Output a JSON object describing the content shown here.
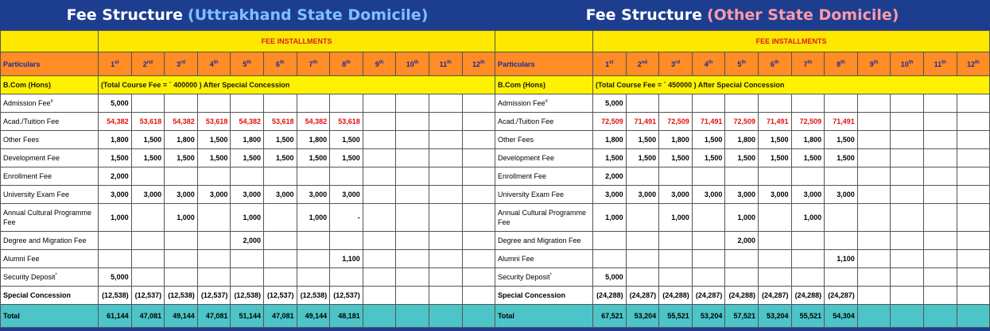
{
  "left": {
    "title": "Fee Structure",
    "title_highlight": "(Uttrakhand State Domicile)",
    "highlight_color": "#7fc0ff",
    "installments_label": "FEE INSTALLMENTS",
    "particulars_label": "Particulars",
    "installments": [
      {
        "n": "1",
        "s": "st"
      },
      {
        "n": "2",
        "s": "nd"
      },
      {
        "n": "3",
        "s": "rd"
      },
      {
        "n": "4",
        "s": "th"
      },
      {
        "n": "5",
        "s": "th"
      },
      {
        "n": "6",
        "s": "th"
      },
      {
        "n": "7",
        "s": "th"
      },
      {
        "n": "8",
        "s": "th"
      },
      {
        "n": "9",
        "s": "th"
      },
      {
        "n": "10",
        "s": "th"
      },
      {
        "n": "11",
        "s": "th"
      },
      {
        "n": "12",
        "s": "th"
      }
    ],
    "course": "B.Com (Hons)",
    "course_note": "(Total Course Fee = `      400000  ) After Special Concession",
    "rows": [
      {
        "label": "Admission Fee",
        "mark": "#",
        "values": [
          "5,000",
          "",
          "",
          "",
          "",
          "",
          "",
          "",
          "",
          "",
          "",
          ""
        ]
      },
      {
        "label": "Acad./Tuition  Fee",
        "mark": "",
        "red": true,
        "values": [
          "54,382",
          "53,618",
          "54,382",
          "53,618",
          "54,382",
          "53,618",
          "54,382",
          "53,618",
          "",
          "",
          "",
          ""
        ]
      },
      {
        "label": "Other Fees",
        "mark": "",
        "values": [
          "1,800",
          "1,500",
          "1,800",
          "1,500",
          "1,800",
          "1,500",
          "1,800",
          "1,500",
          "",
          "",
          "",
          ""
        ]
      },
      {
        "label": "Development Fee",
        "mark": "",
        "values": [
          "1,500",
          "1,500",
          "1,500",
          "1,500",
          "1,500",
          "1,500",
          "1,500",
          "1,500",
          "",
          "",
          "",
          ""
        ]
      },
      {
        "label": "Enrollment Fee",
        "mark": "",
        "values": [
          "2,000",
          "",
          "",
          "",
          "",
          "",
          "",
          "",
          "",
          "",
          "",
          ""
        ]
      },
      {
        "label": "University Exam Fee",
        "mark": "",
        "values": [
          "3,000",
          "3,000",
          "3,000",
          "3,000",
          "3,000",
          "3,000",
          "3,000",
          "3,000",
          "",
          "",
          "",
          ""
        ]
      },
      {
        "label": "Annual Cultural Programme Fee",
        "mark": "",
        "tall": true,
        "values": [
          "1,000",
          "",
          "1,000",
          "",
          "1,000",
          "",
          "1,000",
          "-",
          "",
          "",
          "",
          ""
        ]
      },
      {
        "label": "Degree and Migration Fee",
        "mark": "",
        "values": [
          "",
          "",
          "",
          "",
          "2,000",
          "",
          "",
          "",
          "",
          "",
          "",
          ""
        ]
      },
      {
        "label": "Alumni Fee",
        "mark": "",
        "values": [
          "",
          "",
          "",
          "",
          "",
          "",
          "",
          "1,100",
          "",
          "",
          "",
          ""
        ]
      },
      {
        "label": "Security Deposit",
        "mark": "*",
        "values": [
          "5,000",
          "",
          "",
          "",
          "",
          "",
          "",
          "",
          "",
          "",
          "",
          ""
        ]
      },
      {
        "label": "Special Concession",
        "mark": "",
        "bold": true,
        "values": [
          "(12,538)",
          "(12,537)",
          "(12,538)",
          "(12,537)",
          "(12,538)",
          "(12,537)",
          "(12,538)",
          "(12,537)",
          "",
          "",
          "",
          ""
        ]
      }
    ],
    "total": {
      "label": "Total",
      "values": [
        "61,144",
        "47,081",
        "49,144",
        "47,081",
        "51,144",
        "47,081",
        "49,144",
        "48,181",
        "",
        "",
        "",
        ""
      ]
    }
  },
  "right": {
    "title": "Fee Structure",
    "title_highlight": "(Other State Domicile)",
    "highlight_color": "#ff9aa8",
    "installments_label": "FEE INSTALLMENTS",
    "particulars_label": "Particulars",
    "installments": [
      {
        "n": "1",
        "s": "st"
      },
      {
        "n": "2",
        "s": "nd"
      },
      {
        "n": "3",
        "s": "rd"
      },
      {
        "n": "4",
        "s": "th"
      },
      {
        "n": "5",
        "s": "th"
      },
      {
        "n": "6",
        "s": "th"
      },
      {
        "n": "7",
        "s": "th"
      },
      {
        "n": "8",
        "s": "th"
      },
      {
        "n": "9",
        "s": "th"
      },
      {
        "n": "10",
        "s": "th"
      },
      {
        "n": "11",
        "s": "th"
      },
      {
        "n": "12",
        "s": "th"
      }
    ],
    "course": "B.Com (Hons)",
    "course_note": "(Total Course Fee = `      450000  ) After Special Concession",
    "rows": [
      {
        "label": "Admission Fee",
        "mark": "#",
        "values": [
          "5,000",
          "",
          "",
          "",
          "",
          "",
          "",
          "",
          "",
          "",
          "",
          ""
        ]
      },
      {
        "label": "Acad./Tuition  Fee",
        "mark": "",
        "red": true,
        "values": [
          "72,509",
          "71,491",
          "72,509",
          "71,491",
          "72,509",
          "71,491",
          "72,509",
          "71,491",
          "",
          "",
          "",
          ""
        ]
      },
      {
        "label": "Other Fees",
        "mark": "",
        "values": [
          "1,800",
          "1,500",
          "1,800",
          "1,500",
          "1,800",
          "1,500",
          "1,800",
          "1,500",
          "",
          "",
          "",
          ""
        ]
      },
      {
        "label": "Development Fee",
        "mark": "",
        "values": [
          "1,500",
          "1,500",
          "1,500",
          "1,500",
          "1,500",
          "1,500",
          "1,500",
          "1,500",
          "",
          "",
          "",
          ""
        ]
      },
      {
        "label": "Enrollment Fee",
        "mark": "",
        "values": [
          "2,000",
          "",
          "",
          "",
          "",
          "",
          "",
          "",
          "",
          "",
          "",
          ""
        ]
      },
      {
        "label": "University Exam Fee",
        "mark": "",
        "values": [
          "3,000",
          "3,000",
          "3,000",
          "3,000",
          "3,000",
          "3,000",
          "3,000",
          "3,000",
          "",
          "",
          "",
          ""
        ]
      },
      {
        "label": "Annual Cultural Programme Fee",
        "mark": "",
        "tall": true,
        "values": [
          "1,000",
          "",
          "1,000",
          "",
          "1,000",
          "",
          "1,000",
          "",
          "",
          "",
          "",
          ""
        ]
      },
      {
        "label": "Degree and Migration Fee",
        "mark": "",
        "values": [
          "",
          "",
          "",
          "",
          "2,000",
          "",
          "",
          "",
          "",
          "",
          "",
          ""
        ]
      },
      {
        "label": "Alumni Fee",
        "mark": "",
        "values": [
          "",
          "",
          "",
          "",
          "",
          "",
          "",
          "1,100",
          "",
          "",
          "",
          ""
        ]
      },
      {
        "label": "Security Deposit",
        "mark": "*",
        "values": [
          "5,000",
          "",
          "",
          "",
          "",
          "",
          "",
          "",
          "",
          "",
          "",
          ""
        ]
      },
      {
        "label": "Special Concession",
        "mark": "",
        "bold": true,
        "values": [
          "(24,288)",
          "(24,287)",
          "(24,288)",
          "(24,287)",
          "(24,288)",
          "(24,287)",
          "(24,288)",
          "(24,287)",
          "",
          "",
          "",
          ""
        ]
      }
    ],
    "total": {
      "label": "Total",
      "values": [
        "67,521",
        "53,204",
        "55,521",
        "53,204",
        "57,521",
        "53,204",
        "55,521",
        "54,304",
        "",
        "",
        "",
        ""
      ]
    }
  }
}
